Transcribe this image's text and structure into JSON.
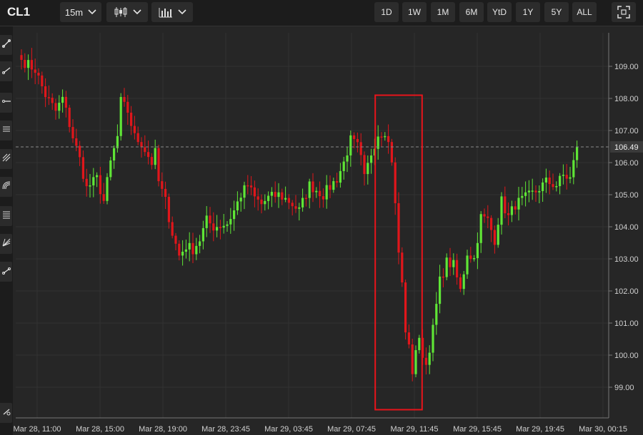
{
  "toolbar": {
    "symbol": "CL1",
    "interval": "15m",
    "chart_type_icon": "candlestick-icon",
    "indicator_icon": "bar-chart-icon",
    "ranges": [
      "1D",
      "1W",
      "1M",
      "6M",
      "YtD",
      "1Y",
      "5Y",
      "ALL"
    ],
    "fullscreen_icon": "fullscreen-icon"
  },
  "sidebar": {
    "tools": [
      "trendline-icon",
      "ray-icon",
      "horizontal-ray-icon",
      "parallel-channel-icon",
      "pitchfork-icon",
      "fib-arc-icon",
      "fib-retracement-icon",
      "gann-fan-icon",
      "measure-icon",
      "drawing-settings-icon"
    ]
  },
  "colors": {
    "up": "#5fe636",
    "down": "#e0161b",
    "highlight_box": "#e8141b",
    "background": "#262626"
  },
  "chart_data": {
    "type": "candlestick",
    "symbol": "CL1",
    "interval": "15m",
    "y_ticks": [
      99,
      100,
      101,
      102,
      103,
      104,
      105,
      106,
      107,
      108,
      109
    ],
    "y_tick_labels": [
      "99.00",
      "100.00",
      "101.00",
      "102.00",
      "103.00",
      "104.00",
      "105.00",
      "106.00",
      "107.00",
      "108.00",
      "109.00"
    ],
    "ylim": [
      98.1,
      109.9
    ],
    "last_price": 106.49,
    "last_price_label": "106.49",
    "x_labels": [
      "Mar 28, 11:00",
      "Mar 28, 15:00",
      "Mar 28, 19:00",
      "Mar 28, 23:45",
      "Mar 29, 03:45",
      "Mar 29, 07:45",
      "Mar 29, 11:45",
      "Mar 29, 15:45",
      "Mar 29, 19:45",
      "Mar 30, 00:15"
    ],
    "grid": true,
    "anchors": [
      [
        0,
        109.2
      ],
      [
        4,
        108.9
      ],
      [
        7,
        108.1
      ],
      [
        10,
        107.6
      ],
      [
        12,
        108.0
      ],
      [
        15,
        106.8
      ],
      [
        17,
        106.1
      ],
      [
        19,
        105.2
      ],
      [
        22,
        105.5
      ],
      [
        24,
        104.8
      ],
      [
        26,
        106.0
      ],
      [
        28,
        106.8
      ],
      [
        29,
        107.9
      ],
      [
        31,
        107.6
      ],
      [
        33,
        106.8
      ],
      [
        35,
        106.6
      ],
      [
        37,
        106.2
      ],
      [
        38,
        106.0
      ],
      [
        39,
        106.3
      ],
      [
        40,
        105.4
      ],
      [
        42,
        104.8
      ],
      [
        44,
        103.8
      ],
      [
        46,
        103.1
      ],
      [
        48,
        103.4
      ],
      [
        50,
        103.3
      ],
      [
        52,
        103.6
      ],
      [
        54,
        104.2
      ],
      [
        56,
        104.0
      ],
      [
        60,
        104.1
      ],
      [
        62,
        104.5
      ],
      [
        64,
        105.0
      ],
      [
        66,
        105.3
      ],
      [
        68,
        104.9
      ],
      [
        70,
        104.7
      ],
      [
        72,
        104.9
      ],
      [
        75,
        105.0
      ],
      [
        78,
        104.8
      ],
      [
        81,
        104.5
      ],
      [
        84,
        105.3
      ],
      [
        88,
        105.0
      ],
      [
        92,
        105.5
      ],
      [
        94,
        106.0
      ],
      [
        96,
        106.7
      ],
      [
        98,
        106.5
      ],
      [
        99,
        106.1
      ],
      [
        100,
        105.5
      ],
      [
        102,
        106.3
      ],
      [
        104,
        106.9
      ],
      [
        106,
        107.0
      ],
      [
        107,
        106.6
      ],
      [
        108,
        106.1
      ],
      [
        110,
        103.2
      ],
      [
        111,
        102.2
      ],
      [
        112,
        100.8
      ],
      [
        113,
        100.2
      ],
      [
        114,
        99.5
      ],
      [
        115,
        100.2
      ],
      [
        116,
        100.4
      ],
      [
        118,
        99.7
      ],
      [
        120,
        100.8
      ],
      [
        122,
        102.3
      ],
      [
        124,
        102.9
      ],
      [
        126,
        102.8
      ],
      [
        128,
        102.0
      ],
      [
        130,
        103.2
      ],
      [
        132,
        103.0
      ],
      [
        134,
        104.3
      ],
      [
        136,
        104.2
      ],
      [
        138,
        103.6
      ],
      [
        140,
        104.8
      ],
      [
        142,
        104.3
      ],
      [
        144,
        104.7
      ],
      [
        147,
        104.9
      ],
      [
        150,
        105.1
      ],
      [
        153,
        105.4
      ],
      [
        156,
        105.3
      ],
      [
        158,
        105.6
      ],
      [
        160,
        105.5
      ],
      [
        162,
        106.49
      ]
    ],
    "highlight": {
      "from_index": 104,
      "to_index": 116,
      "low": 98.3,
      "high": 108.1
    }
  }
}
